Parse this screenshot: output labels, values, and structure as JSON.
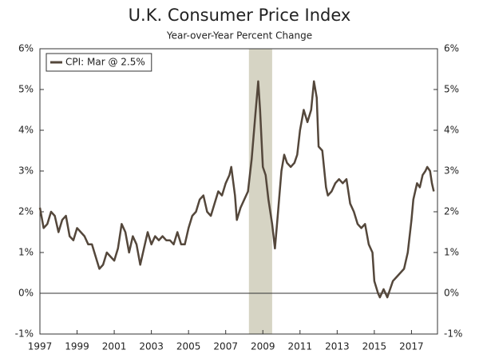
{
  "chart_data": {
    "type": "line",
    "title": "U.K. Consumer Price Index",
    "subtitle": "Year-over-Year Percent Change",
    "x": [
      1997.0,
      1997.2,
      1997.4,
      1997.6,
      1997.8,
      1998.0,
      1998.2,
      1998.4,
      1998.6,
      1998.8,
      1999.0,
      1999.2,
      1999.4,
      1999.6,
      1999.8,
      2000.0,
      2000.2,
      2000.4,
      2000.6,
      2000.8,
      2001.0,
      2001.2,
      2001.4,
      2001.6,
      2001.8,
      2002.0,
      2002.2,
      2002.4,
      2002.6,
      2002.8,
      2003.0,
      2003.2,
      2003.4,
      2003.6,
      2003.8,
      2004.0,
      2004.2,
      2004.4,
      2004.6,
      2004.8,
      2005.0,
      2005.2,
      2005.4,
      2005.6,
      2005.8,
      2006.0,
      2006.2,
      2006.4,
      2006.6,
      2006.8,
      2007.0,
      2007.2,
      2007.3,
      2007.5,
      2007.6,
      2007.8,
      2008.0,
      2008.2,
      2008.4,
      2008.6,
      2008.75,
      2008.85,
      2009.0,
      2009.15,
      2009.3,
      2009.5,
      2009.65,
      2009.8,
      2010.0,
      2010.15,
      2010.3,
      2010.5,
      2010.7,
      2010.85,
      2011.0,
      2011.2,
      2011.4,
      2011.6,
      2011.75,
      2011.9,
      2012.0,
      2012.2,
      2012.4,
      2012.5,
      2012.7,
      2012.9,
      2013.1,
      2013.3,
      2013.5,
      2013.7,
      2013.9,
      2014.1,
      2014.3,
      2014.5,
      2014.7,
      2014.9,
      2015.0,
      2015.2,
      2015.3,
      2015.5,
      2015.7,
      2015.85,
      2016.0,
      2016.2,
      2016.4,
      2016.6,
      2016.8,
      2017.0,
      2017.1,
      2017.3,
      2017.45,
      2017.6,
      2017.75,
      2017.85,
      2018.0,
      2018.1,
      2018.2
    ],
    "series": [
      {
        "name": "CPI: Mar @ 2.5%",
        "color": "#54473b",
        "values": [
          2.1,
          1.6,
          1.7,
          2.0,
          1.9,
          1.5,
          1.8,
          1.9,
          1.4,
          1.3,
          1.6,
          1.5,
          1.4,
          1.2,
          1.2,
          0.9,
          0.6,
          0.7,
          1.0,
          0.9,
          0.8,
          1.1,
          1.7,
          1.5,
          1.0,
          1.4,
          1.2,
          0.7,
          1.1,
          1.5,
          1.2,
          1.4,
          1.3,
          1.4,
          1.3,
          1.3,
          1.2,
          1.5,
          1.2,
          1.2,
          1.6,
          1.9,
          2.0,
          2.3,
          2.4,
          2.0,
          1.9,
          2.2,
          2.5,
          2.4,
          2.7,
          2.9,
          3.1,
          2.4,
          1.8,
          2.1,
          2.3,
          2.5,
          3.3,
          4.4,
          5.2,
          4.5,
          3.1,
          2.9,
          2.3,
          1.7,
          1.1,
          1.9,
          3.0,
          3.4,
          3.2,
          3.1,
          3.2,
          3.4,
          4.0,
          4.5,
          4.2,
          4.5,
          5.2,
          4.8,
          3.6,
          3.5,
          2.6,
          2.4,
          2.5,
          2.7,
          2.8,
          2.7,
          2.8,
          2.2,
          2.0,
          1.7,
          1.6,
          1.7,
          1.2,
          1.0,
          0.3,
          0.0,
          -0.1,
          0.1,
          -0.1,
          0.1,
          0.3,
          0.4,
          0.5,
          0.6,
          1.0,
          1.8,
          2.3,
          2.7,
          2.6,
          2.9,
          3.0,
          3.1,
          3.0,
          2.7,
          2.5
        ]
      }
    ],
    "shaded_span": {
      "x": [
        2008.25,
        2009.5
      ],
      "color": "#d6d4c4"
    },
    "xlim": [
      1997,
      2018.4
    ],
    "xticks": [
      1997,
      1999,
      2001,
      2003,
      2005,
      2007,
      2009,
      2011,
      2013,
      2015,
      2017
    ],
    "ylim": [
      -1,
      6
    ],
    "yticks": [
      {
        "value": -1,
        "label": "-1%"
      },
      {
        "value": 0,
        "label": "0%"
      },
      {
        "value": 1,
        "label": "1%"
      },
      {
        "value": 2,
        "label": "2%"
      },
      {
        "value": 3,
        "label": "3%"
      },
      {
        "value": 4,
        "label": "4%"
      },
      {
        "value": 5,
        "label": "5%"
      },
      {
        "value": 6,
        "label": "6%"
      }
    ],
    "y2lim": [
      -1,
      6
    ],
    "y2ticks": [
      {
        "value": -1,
        "label": "-1%"
      },
      {
        "value": 0,
        "label": "0%"
      },
      {
        "value": 1,
        "label": "1%"
      },
      {
        "value": 2,
        "label": "2%"
      },
      {
        "value": 3,
        "label": "3%"
      },
      {
        "value": 4,
        "label": "4%"
      },
      {
        "value": 5,
        "label": "5%"
      },
      {
        "value": 6,
        "label": "6%"
      }
    ],
    "legend": "top-left",
    "grid": false
  }
}
